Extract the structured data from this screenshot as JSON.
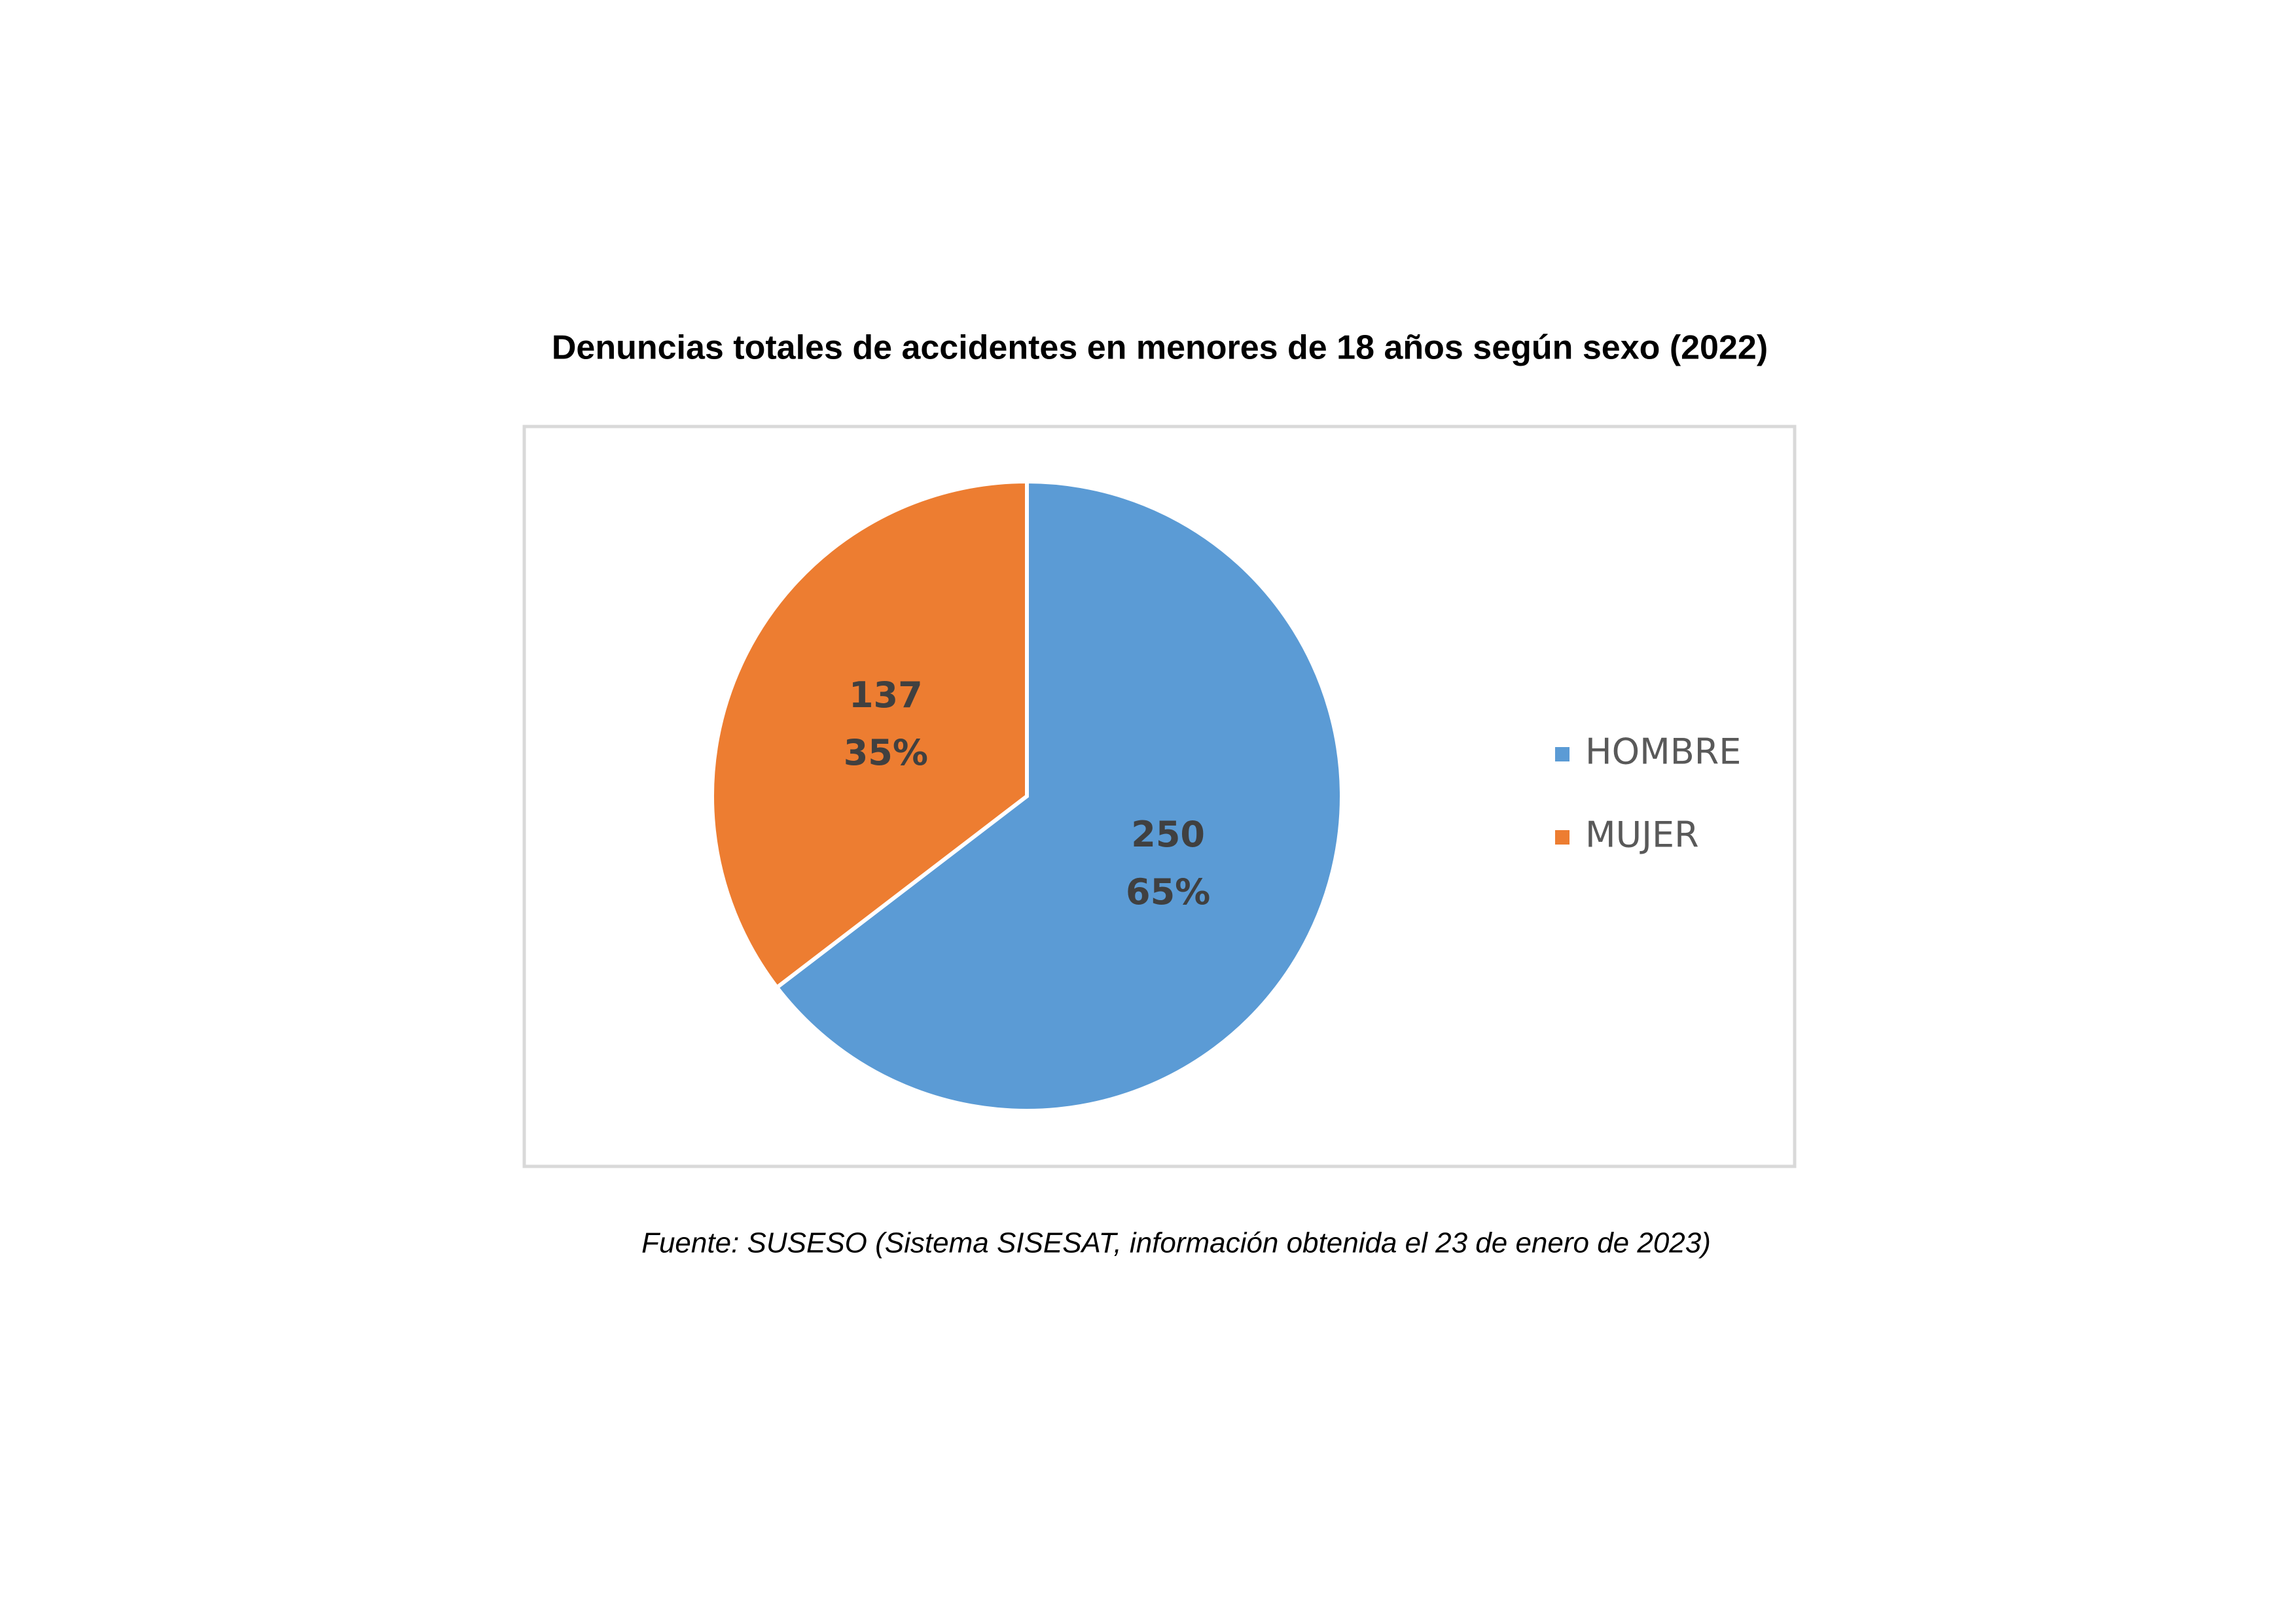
{
  "chart_data": {
    "type": "pie",
    "title": "Denuncias totales de accidentes en menores de 18 años según sexo (2022)",
    "categories": [
      "HOMBRE",
      "MUJER"
    ],
    "values": [
      250,
      137
    ],
    "percent_labels": [
      "65%",
      "35%"
    ],
    "colors": [
      "#5b9bd5",
      "#ed7d31"
    ],
    "legend": "right",
    "source": "Fuente: SUSESO (Sistema SISESAT, información obtenida el 23 de enero de 2023)"
  }
}
